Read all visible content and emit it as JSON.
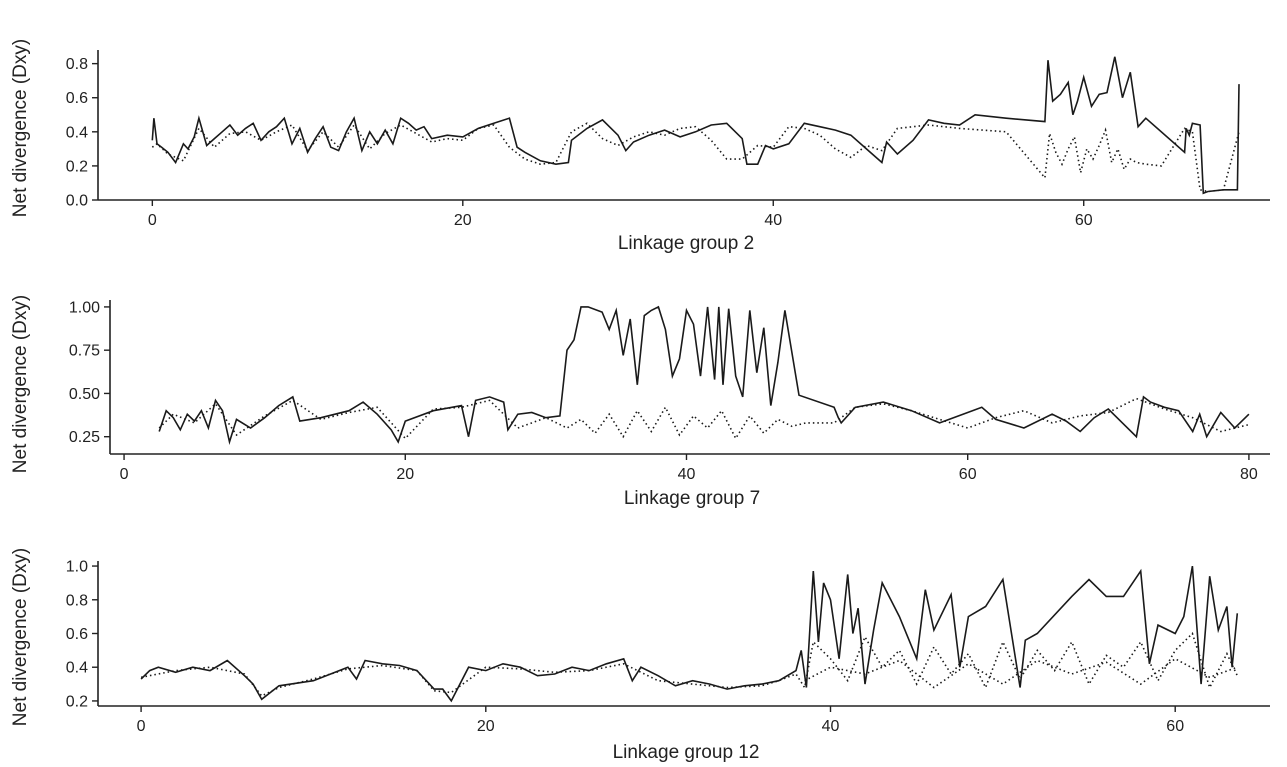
{
  "chart_data": [
    {
      "type": "line",
      "xlabel": "Linkage group 2",
      "ylabel": "Net divergence (Dxy)",
      "xlim": [
        -3.5,
        72
      ],
      "ylim": [
        0,
        0.88
      ],
      "xticks": [
        0,
        20,
        40,
        60
      ],
      "yticks": [
        0.0,
        0.2,
        0.4,
        0.6,
        0.8
      ],
      "yticklabels": [
        "0.0",
        "0.2",
        "0.4",
        "0.6",
        "0.8"
      ],
      "grid": false,
      "series": [
        {
          "style": "solid",
          "x": [
            0,
            0.1,
            0.3,
            0.6,
            1,
            1.5,
            2,
            2.3,
            2.7,
            3.0,
            3.5,
            4.0,
            4.5,
            5.0,
            5.5,
            6.0,
            6.5,
            7.0,
            7.5,
            8.0,
            8.5,
            9.0,
            9.5,
            10.0,
            10.5,
            11.0,
            11.5,
            12.0,
            12.5,
            13.0,
            13.5,
            14.0,
            14.5,
            15.0,
            15.5,
            16.0,
            16.5,
            17.0,
            17.5,
            18.0,
            19.0,
            20.0,
            21.0,
            22.0,
            23.0,
            23.5,
            24.0,
            25.0,
            26.0,
            26.8,
            27.0,
            28.0,
            29.0,
            30.0,
            30.5,
            31.0,
            32.0,
            33.0,
            34.0,
            35.0,
            36.0,
            37.0,
            38.0,
            38.3,
            39.0,
            39.5,
            40.0,
            41.0,
            42.0,
            43.0,
            44.0,
            45.0,
            46.0,
            47.0,
            47.3,
            48.0,
            49.0,
            50.0,
            51.0,
            52.0,
            53.0,
            55.0,
            57.5,
            57.7,
            58.0,
            58.5,
            59.0,
            59.3,
            59.6,
            60.0,
            60.5,
            61.0,
            61.5,
            62.0,
            62.5,
            63.0,
            63.5,
            64.0,
            66.5,
            66.6,
            66.8,
            67.0,
            67.5,
            67.7,
            68.0,
            69.0,
            69.9,
            70.0
          ],
          "y": [
            0.35,
            0.48,
            0.33,
            0.31,
            0.28,
            0.22,
            0.33,
            0.3,
            0.37,
            0.48,
            0.32,
            0.36,
            0.4,
            0.44,
            0.38,
            0.42,
            0.45,
            0.35,
            0.4,
            0.43,
            0.48,
            0.33,
            0.42,
            0.28,
            0.36,
            0.43,
            0.31,
            0.29,
            0.4,
            0.48,
            0.29,
            0.4,
            0.33,
            0.41,
            0.33,
            0.48,
            0.45,
            0.41,
            0.43,
            0.36,
            0.38,
            0.37,
            0.42,
            0.45,
            0.48,
            0.31,
            0.28,
            0.23,
            0.21,
            0.22,
            0.35,
            0.42,
            0.47,
            0.38,
            0.29,
            0.34,
            0.38,
            0.41,
            0.37,
            0.4,
            0.44,
            0.45,
            0.36,
            0.21,
            0.21,
            0.32,
            0.3,
            0.33,
            0.45,
            0.43,
            0.41,
            0.38,
            0.3,
            0.22,
            0.34,
            0.27,
            0.35,
            0.47,
            0.45,
            0.44,
            0.5,
            0.48,
            0.46,
            0.82,
            0.58,
            0.62,
            0.69,
            0.5,
            0.58,
            0.72,
            0.55,
            0.62,
            0.63,
            0.84,
            0.6,
            0.75,
            0.43,
            0.48,
            0.28,
            0.42,
            0.38,
            0.45,
            0.44,
            0.04,
            0.05,
            0.06,
            0.06,
            0.68
          ]
        },
        {
          "style": "dotted",
          "x": [
            0,
            0.3,
            1,
            2,
            3,
            4,
            5,
            6,
            7,
            8,
            9,
            10,
            11,
            12,
            13,
            14,
            15,
            16,
            17,
            18,
            19,
            20,
            21,
            22,
            23,
            24,
            25,
            26,
            27,
            28,
            29,
            30,
            31,
            32,
            33,
            34,
            35,
            36,
            37,
            38,
            39,
            40,
            41,
            42,
            43,
            44,
            45,
            46,
            47,
            48,
            49,
            50,
            52,
            55,
            57.5,
            57.8,
            58.2,
            58.6,
            59.0,
            59.4,
            59.8,
            60.2,
            60.6,
            61.0,
            61.4,
            61.8,
            62.2,
            62.6,
            63.0,
            63.4,
            64.0,
            65.0,
            66.5,
            67.0,
            67.5,
            68.0,
            69.0,
            70.0
          ],
          "y": [
            0.31,
            0.33,
            0.27,
            0.23,
            0.42,
            0.31,
            0.39,
            0.4,
            0.35,
            0.4,
            0.44,
            0.29,
            0.4,
            0.31,
            0.44,
            0.3,
            0.39,
            0.44,
            0.39,
            0.34,
            0.36,
            0.35,
            0.42,
            0.44,
            0.31,
            0.24,
            0.21,
            0.22,
            0.4,
            0.45,
            0.36,
            0.32,
            0.37,
            0.4,
            0.38,
            0.42,
            0.43,
            0.35,
            0.24,
            0.24,
            0.32,
            0.31,
            0.43,
            0.42,
            0.38,
            0.3,
            0.25,
            0.32,
            0.29,
            0.42,
            0.43,
            0.44,
            0.42,
            0.4,
            0.13,
            0.39,
            0.28,
            0.21,
            0.3,
            0.37,
            0.16,
            0.3,
            0.24,
            0.32,
            0.41,
            0.22,
            0.3,
            0.18,
            0.24,
            0.22,
            0.21,
            0.2,
            0.42,
            0.4,
            0.06,
            0.05,
            0.06,
            0.4
          ]
        }
      ]
    },
    {
      "type": "line",
      "xlabel": "Linkage group 7",
      "ylabel": "Net divergence (Dxy)",
      "xlim": [
        -1,
        81.5
      ],
      "ylim": [
        0.15,
        1.04
      ],
      "xticks": [
        0,
        20,
        40,
        60,
        80
      ],
      "yticks": [
        0.25,
        0.5,
        0.75,
        1.0
      ],
      "yticklabels": [
        "0.25",
        "0.50",
        "0.75",
        "1.00"
      ],
      "grid": false,
      "series": [
        {
          "style": "solid",
          "x": [
            2.5,
            3,
            3.5,
            4,
            4.5,
            5,
            5.5,
            6,
            6.5,
            7,
            7.5,
            8,
            9,
            10,
            11,
            12,
            12.5,
            14,
            15,
            16,
            17,
            18,
            19,
            19.5,
            20,
            22,
            24,
            24.5,
            25,
            26,
            27,
            27.3,
            28,
            29,
            30,
            31,
            31.5,
            32,
            32.5,
            33,
            34,
            34.5,
            35,
            35.5,
            36,
            36.5,
            37,
            37.5,
            38,
            38.5,
            39,
            39.5,
            40,
            40.5,
            41,
            41.5,
            42,
            42.3,
            42.6,
            43,
            43.5,
            44,
            44.5,
            45,
            45.5,
            46,
            46.5,
            47,
            48,
            50.5,
            50.8,
            51,
            52,
            54,
            56,
            58,
            60,
            61,
            62,
            64,
            66,
            67,
            68,
            69,
            70,
            71,
            72,
            72.5,
            73,
            74,
            75,
            76,
            76.5,
            77,
            78,
            79,
            80
          ],
          "y": [
            0.28,
            0.4,
            0.36,
            0.29,
            0.38,
            0.34,
            0.4,
            0.3,
            0.46,
            0.4,
            0.22,
            0.35,
            0.3,
            0.36,
            0.43,
            0.48,
            0.34,
            0.36,
            0.38,
            0.4,
            0.45,
            0.38,
            0.29,
            0.22,
            0.34,
            0.4,
            0.43,
            0.25,
            0.46,
            0.48,
            0.45,
            0.29,
            0.38,
            0.39,
            0.36,
            0.37,
            0.75,
            0.81,
            1.0,
            1.0,
            0.97,
            0.87,
            0.98,
            0.72,
            0.93,
            0.55,
            0.95,
            0.98,
            1.0,
            0.87,
            0.6,
            0.7,
            0.98,
            0.9,
            0.6,
            1.0,
            0.58,
            1.0,
            0.55,
            0.99,
            0.6,
            0.48,
            0.98,
            0.62,
            0.88,
            0.43,
            0.68,
            0.98,
            0.49,
            0.42,
            0.36,
            0.33,
            0.42,
            0.45,
            0.4,
            0.33,
            0.39,
            0.42,
            0.35,
            0.3,
            0.38,
            0.34,
            0.28,
            0.36,
            0.41,
            0.33,
            0.25,
            0.48,
            0.45,
            0.42,
            0.4,
            0.28,
            0.38,
            0.25,
            0.39,
            0.3,
            0.38
          ]
        },
        {
          "style": "dotted",
          "x": [
            2.5,
            3.5,
            5,
            6.5,
            8,
            10,
            12,
            14,
            16,
            18,
            20,
            22,
            24,
            26,
            28,
            30,
            31.5,
            32.5,
            33.5,
            34.5,
            35.5,
            36.5,
            37.5,
            38.5,
            39.5,
            40.5,
            41.5,
            42.5,
            43.5,
            44.5,
            45.5,
            46.5,
            47.5,
            48.5,
            50.5,
            52,
            54,
            56,
            58,
            60,
            62,
            64,
            66,
            68,
            70,
            72,
            74,
            76,
            78,
            80
          ],
          "y": [
            0.3,
            0.38,
            0.33,
            0.44,
            0.26,
            0.37,
            0.46,
            0.35,
            0.39,
            0.42,
            0.24,
            0.41,
            0.42,
            0.46,
            0.3,
            0.36,
            0.3,
            0.35,
            0.27,
            0.38,
            0.25,
            0.4,
            0.28,
            0.42,
            0.26,
            0.37,
            0.3,
            0.4,
            0.24,
            0.37,
            0.27,
            0.35,
            0.31,
            0.33,
            0.33,
            0.42,
            0.44,
            0.4,
            0.35,
            0.3,
            0.36,
            0.4,
            0.33,
            0.37,
            0.39,
            0.47,
            0.41,
            0.36,
            0.28,
            0.32
          ]
        }
      ]
    },
    {
      "type": "line",
      "xlabel": "Linkage group 12",
      "ylabel": "Net divergence (Dxy)",
      "xlim": [
        -2.5,
        65.5
      ],
      "ylim": [
        0.17,
        1.03
      ],
      "xticks": [
        0,
        20,
        40,
        60
      ],
      "yticks": [
        0.2,
        0.4,
        0.6,
        0.8,
        1.0
      ],
      "yticklabels": [
        "0.2",
        "0.4",
        "0.6",
        "0.8",
        "1.0"
      ],
      "grid": false,
      "series": [
        {
          "style": "solid",
          "x": [
            0,
            0.5,
            1,
            2,
            3,
            4,
            5,
            6,
            6.5,
            7,
            8,
            10,
            12,
            12.5,
            13,
            14,
            15,
            16,
            17,
            17.5,
            18,
            19,
            20,
            21,
            22,
            23,
            24,
            25,
            26,
            27,
            28,
            28.5,
            29,
            30,
            31,
            32,
            33,
            34,
            35,
            36,
            37,
            38,
            38.3,
            38.6,
            39,
            39.3,
            39.6,
            40,
            40.5,
            41,
            41.3,
            41.6,
            42,
            42.5,
            43,
            44,
            45,
            45.5,
            46,
            47,
            47.5,
            48,
            49,
            50,
            51,
            51.3,
            52,
            54,
            55,
            56,
            57,
            58,
            58.5,
            59,
            60,
            60.5,
            61,
            61.5,
            62,
            62.5,
            63,
            63.3,
            63.6
          ],
          "y": [
            0.33,
            0.38,
            0.4,
            0.37,
            0.4,
            0.38,
            0.44,
            0.35,
            0.3,
            0.21,
            0.29,
            0.32,
            0.4,
            0.33,
            0.44,
            0.42,
            0.41,
            0.38,
            0.27,
            0.27,
            0.2,
            0.4,
            0.38,
            0.42,
            0.4,
            0.35,
            0.36,
            0.4,
            0.38,
            0.42,
            0.45,
            0.32,
            0.4,
            0.35,
            0.29,
            0.32,
            0.3,
            0.27,
            0.29,
            0.3,
            0.32,
            0.38,
            0.5,
            0.28,
            0.97,
            0.55,
            0.9,
            0.8,
            0.45,
            0.95,
            0.6,
            0.75,
            0.3,
            0.62,
            0.9,
            0.7,
            0.45,
            0.86,
            0.62,
            0.83,
            0.4,
            0.7,
            0.76,
            0.92,
            0.28,
            0.56,
            0.6,
            0.82,
            0.92,
            0.82,
            0.82,
            0.97,
            0.42,
            0.65,
            0.6,
            0.7,
            1.0,
            0.3,
            0.94,
            0.62,
            0.76,
            0.4,
            0.72
          ]
        },
        {
          "style": "dotted",
          "x": [
            0,
            2,
            4,
            6,
            7,
            8,
            10,
            12,
            14,
            16,
            17,
            18,
            20,
            22,
            24,
            26,
            28,
            30,
            32,
            34,
            36,
            37,
            38,
            38.5,
            39,
            40,
            41,
            42,
            43,
            44,
            45,
            46,
            47,
            48,
            49,
            50,
            51,
            52,
            53,
            54,
            55,
            56,
            57,
            58,
            59,
            60,
            61,
            62,
            63,
            63.6
          ],
          "y": [
            0.34,
            0.38,
            0.4,
            0.36,
            0.23,
            0.28,
            0.33,
            0.39,
            0.41,
            0.38,
            0.26,
            0.25,
            0.4,
            0.39,
            0.37,
            0.38,
            0.42,
            0.32,
            0.3,
            0.28,
            0.29,
            0.32,
            0.36,
            0.28,
            0.55,
            0.45,
            0.32,
            0.58,
            0.4,
            0.5,
            0.3,
            0.52,
            0.36,
            0.48,
            0.28,
            0.55,
            0.33,
            0.5,
            0.38,
            0.55,
            0.3,
            0.47,
            0.4,
            0.55,
            0.32,
            0.5,
            0.6,
            0.28,
            0.48,
            0.35
          ]
        },
        {
          "style": "dotted",
          "x": [
            38.5,
            40,
            42,
            44,
            46,
            48,
            50,
            52,
            54,
            56,
            58,
            60,
            62,
            63.6
          ],
          "y": [
            0.32,
            0.4,
            0.36,
            0.44,
            0.28,
            0.42,
            0.3,
            0.44,
            0.36,
            0.43,
            0.3,
            0.45,
            0.34,
            0.4
          ]
        }
      ]
    }
  ]
}
